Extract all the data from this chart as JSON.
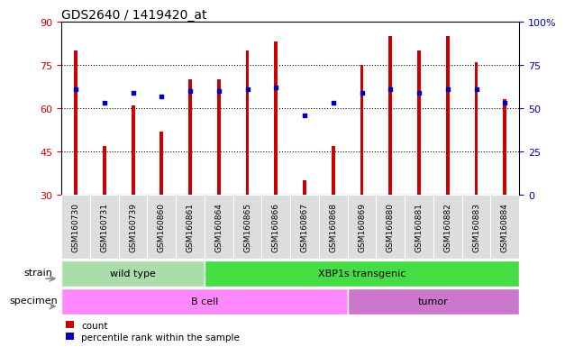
{
  "title": "GDS2640 / 1419420_at",
  "samples": [
    "GSM160730",
    "GSM160731",
    "GSM160739",
    "GSM160860",
    "GSM160861",
    "GSM160864",
    "GSM160865",
    "GSM160866",
    "GSM160867",
    "GSM160868",
    "GSM160869",
    "GSM160880",
    "GSM160881",
    "GSM160882",
    "GSM160883",
    "GSM160884"
  ],
  "counts": [
    80,
    47,
    61,
    52,
    70,
    70,
    80,
    83,
    35,
    47,
    75,
    85,
    80,
    85,
    76,
    63
  ],
  "percentiles": [
    61,
    53,
    59,
    57,
    60,
    60,
    61,
    62,
    46,
    53,
    59,
    61,
    59,
    61,
    61,
    53
  ],
  "ylim_left": [
    30,
    90
  ],
  "ylim_right": [
    0,
    100
  ],
  "yticks_left": [
    30,
    45,
    60,
    75,
    90
  ],
  "yticks_right": [
    0,
    25,
    50,
    75,
    100
  ],
  "ytick_labels_right": [
    "0",
    "25",
    "50",
    "75",
    "100%"
  ],
  "bar_color": "#CC0000",
  "dot_color": "#0000BB",
  "strain_groups": [
    {
      "label": "wild type",
      "start": 0,
      "end": 5,
      "color": "#AADDAA"
    },
    {
      "label": "XBP1s transgenic",
      "start": 5,
      "end": 16,
      "color": "#44DD44"
    }
  ],
  "specimen_groups": [
    {
      "label": "B cell",
      "start": 0,
      "end": 10,
      "color": "#FF88FF"
    },
    {
      "label": "tumor",
      "start": 10,
      "end": 16,
      "color": "#CC77CC"
    }
  ],
  "bar_bottom": 30,
  "bar_width": 0.12,
  "x_tick_fontsize": 6.5,
  "title_fontsize": 10,
  "label_fontsize": 8,
  "group_fontsize": 8
}
